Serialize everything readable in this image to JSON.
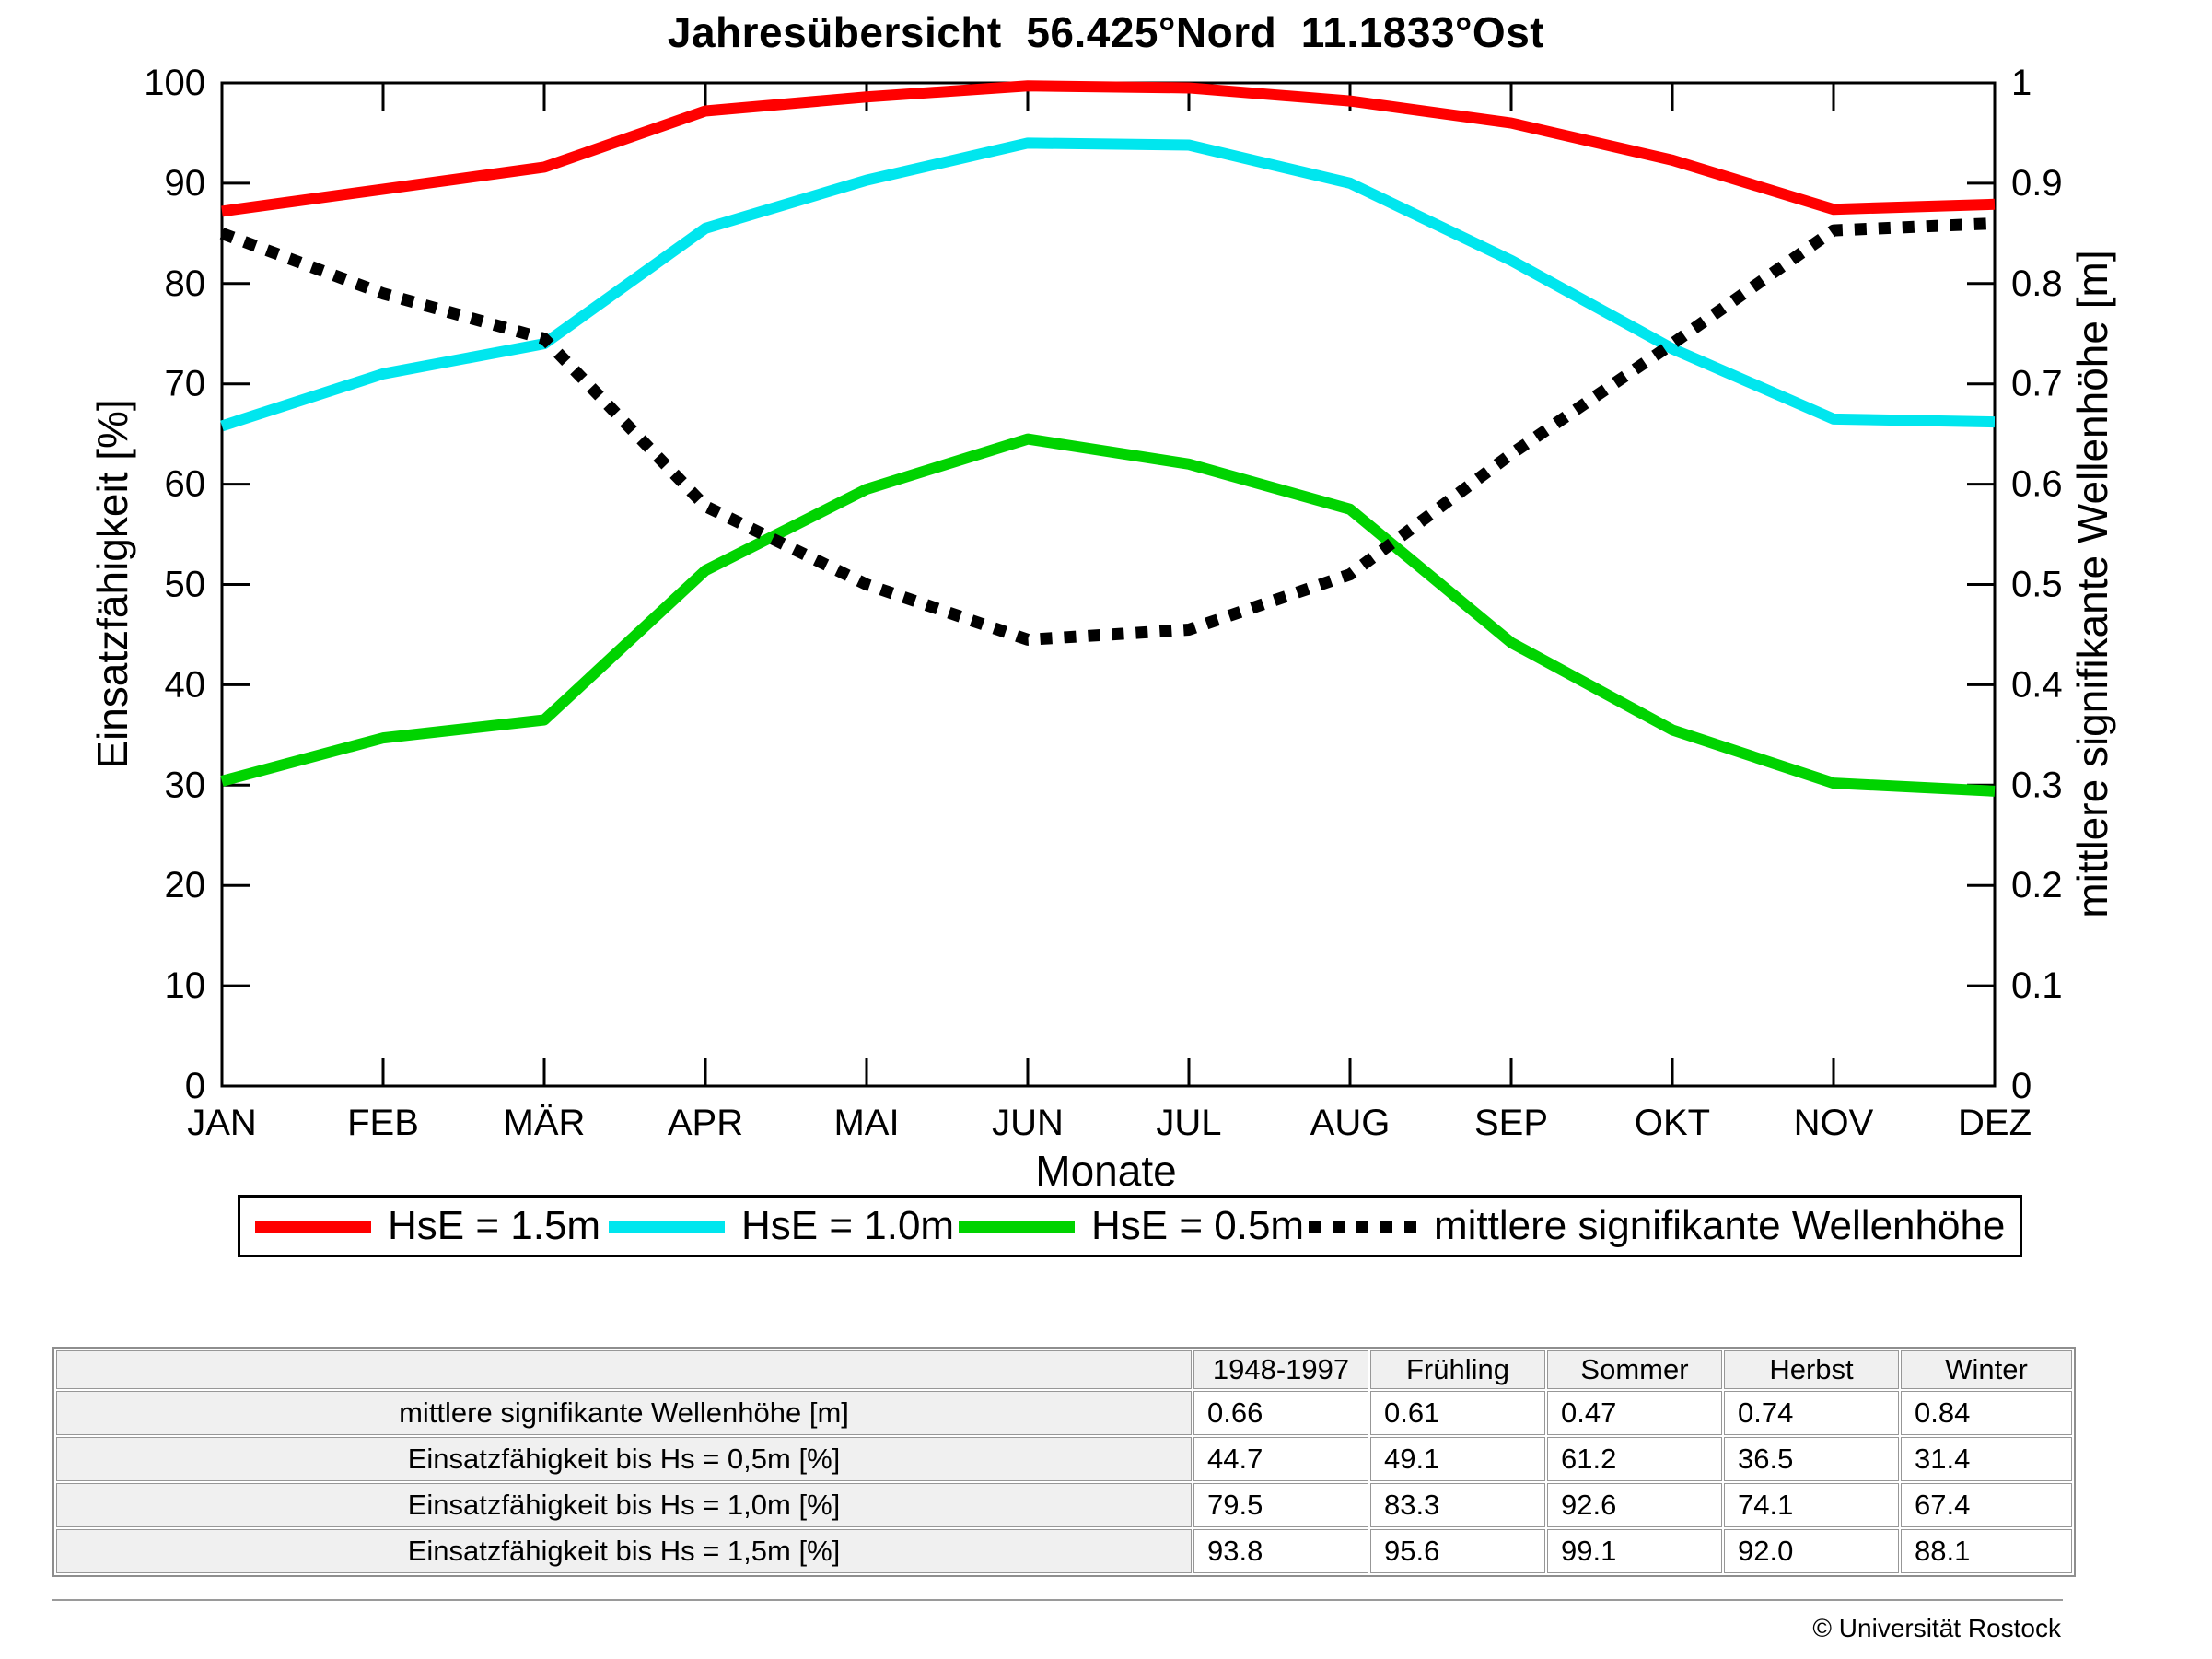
{
  "title": "Jahresübersicht  56.425°Nord  11.1833°Ost",
  "axes": {
    "ylabel_left": "Einsatzfähigkeit [%]",
    "ylabel_right": "mittlere signifikante Wellenhöhe [m]",
    "xlabel": "Monate",
    "yticks_left": [
      "0",
      "10",
      "20",
      "30",
      "40",
      "50",
      "60",
      "70",
      "80",
      "90",
      "100"
    ],
    "yticks_right": [
      "0",
      "0.1",
      "0.2",
      "0.3",
      "0.4",
      "0.5",
      "0.6",
      "0.7",
      "0.8",
      "0.9",
      "1"
    ]
  },
  "chart_data": {
    "type": "line",
    "title": "Jahresübersicht  56.425°Nord  11.1833°Ost",
    "categories": [
      "JAN",
      "FEB",
      "MÄR",
      "APR",
      "MAI",
      "JUN",
      "JUL",
      "AUG",
      "SEP",
      "OKT",
      "NOV",
      "DEZ"
    ],
    "xlabel": "Monate",
    "ylabel_left": "Einsatzfähigkeit [%]",
    "ylabel_right": "mittlere signifikante Wellenhöhe [m]",
    "ylim_left": [
      0,
      100
    ],
    "ylim_right": [
      0,
      1
    ],
    "grid": false,
    "legend_position": "below",
    "series": [
      {
        "name": "HsE = 1.5m",
        "color": "#ff0000",
        "style": "solid",
        "axis": "left",
        "values": [
          87.2,
          89.4,
          91.6,
          97.2,
          98.6,
          99.7,
          99.5,
          98.2,
          96.0,
          92.3,
          87.4,
          87.9
        ]
      },
      {
        "name": "HsE = 1.0m",
        "color": "#00e6ee",
        "style": "solid",
        "axis": "left",
        "values": [
          65.8,
          71.0,
          74.0,
          85.5,
          90.3,
          94.0,
          93.8,
          90.0,
          82.3,
          73.5,
          66.5,
          66.2
        ]
      },
      {
        "name": "HsE = 0.5m",
        "color": "#00d300",
        "style": "solid",
        "axis": "left",
        "values": [
          30.4,
          34.7,
          36.5,
          51.4,
          59.5,
          64.5,
          62.0,
          57.5,
          44.2,
          35.5,
          30.2,
          29.4
        ]
      },
      {
        "name": "mittlere signifikante Wellenhöhe",
        "color": "#000000",
        "style": "dotted",
        "axis": "right",
        "values": [
          0.85,
          0.79,
          0.745,
          0.578,
          0.5,
          0.445,
          0.455,
          0.51,
          0.63,
          0.74,
          0.853,
          0.86
        ]
      }
    ]
  },
  "table": {
    "headers": [
      "",
      "1948-1997",
      "Frühling",
      "Sommer",
      "Herbst",
      "Winter"
    ],
    "rows": [
      {
        "label": "mittlere signifikante Wellenhöhe [m]",
        "values": [
          "0.66",
          "0.61",
          "0.47",
          "0.74",
          "0.84"
        ]
      },
      {
        "label": "Einsatzfähigkeit bis Hs = 0,5m [%]",
        "values": [
          "44.7",
          "49.1",
          "61.2",
          "36.5",
          "31.4"
        ]
      },
      {
        "label": "Einsatzfähigkeit bis Hs = 1,0m [%]",
        "values": [
          "79.5",
          "83.3",
          "92.6",
          "74.1",
          "67.4"
        ]
      },
      {
        "label": "Einsatzfähigkeit bis Hs = 1,5m [%]",
        "values": [
          "93.8",
          "95.6",
          "99.1",
          "92.0",
          "88.1"
        ]
      }
    ]
  },
  "footer": {
    "copyright": "© Universität Rostock"
  }
}
